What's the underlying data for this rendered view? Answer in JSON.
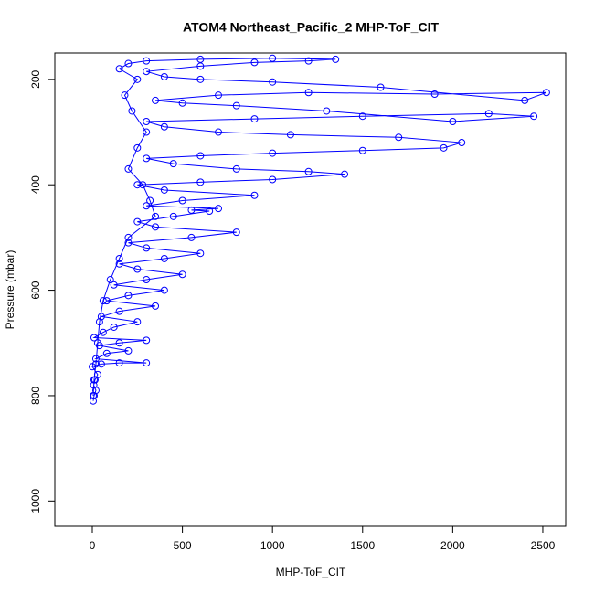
{
  "chart_data": {
    "type": "line",
    "markers": true,
    "title": "ATOM4 Northeast_Pacific_2 MHP-ToF_CIT",
    "x_label": "MHP-ToF_CIT",
    "y_label": "Pressure (mbar)",
    "color": "#0000ff",
    "xlim": [
      -208,
      2627
    ],
    "ylim": [
      1048,
      150
    ],
    "y_reversed": true,
    "xticks": [
      0,
      500,
      1000,
      1500,
      2000,
      2500
    ],
    "yticks": [
      200,
      400,
      600,
      800,
      1000
    ],
    "x": [
      5,
      10,
      20,
      8,
      15,
      30,
      0,
      50,
      150,
      300,
      20,
      80,
      200,
      40,
      150,
      300,
      10,
      60,
      120,
      250,
      50,
      150,
      350,
      80,
      200,
      400,
      120,
      300,
      500,
      250,
      150,
      400,
      600,
      300,
      200,
      550,
      800,
      350,
      250,
      450,
      650,
      550,
      700,
      300,
      500,
      900,
      400,
      250,
      600,
      1000,
      1400,
      1200,
      800,
      450,
      300,
      600,
      1000,
      1500,
      1950,
      2050,
      1700,
      1100,
      700,
      400,
      300,
      900,
      1500,
      2200,
      2450,
      2000,
      1300,
      800,
      500,
      350,
      700,
      1200,
      1900,
      2520,
      2400,
      1600,
      1000,
      600,
      400,
      300,
      600,
      900,
      1200,
      1350,
      1000,
      600,
      300,
      200,
      150,
      250,
      180,
      220,
      300,
      250,
      200,
      280,
      320,
      350,
      200,
      150,
      100,
      60,
      40,
      30,
      20,
      10,
      5
    ],
    "values": [
      810,
      800,
      790,
      780,
      770,
      760,
      745,
      740,
      738,
      738,
      730,
      720,
      715,
      705,
      700,
      695,
      690,
      680,
      670,
      660,
      650,
      640,
      630,
      620,
      610,
      600,
      590,
      580,
      570,
      560,
      550,
      540,
      530,
      520,
      510,
      500,
      490,
      480,
      470,
      460,
      450,
      448,
      445,
      440,
      430,
      420,
      410,
      400,
      395,
      390,
      380,
      375,
      370,
      360,
      350,
      345,
      340,
      335,
      330,
      320,
      310,
      305,
      300,
      290,
      280,
      275,
      270,
      265,
      270,
      280,
      260,
      250,
      245,
      240,
      230,
      225,
      228,
      225,
      240,
      215,
      205,
      200,
      195,
      185,
      175,
      168,
      165,
      162,
      160,
      162,
      165,
      170,
      180,
      200,
      230,
      260,
      300,
      330,
      370,
      400,
      430,
      460,
      500,
      540,
      580,
      620,
      660,
      700,
      740,
      770,
      800
    ]
  }
}
